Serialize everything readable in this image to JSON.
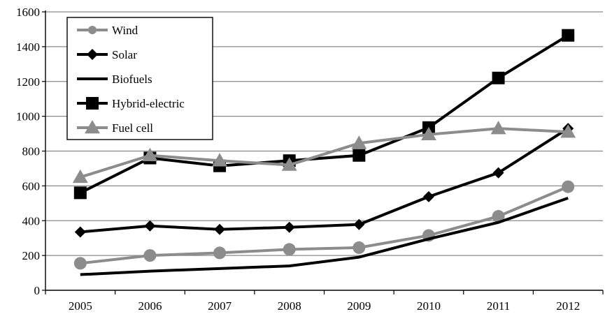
{
  "chart_data": {
    "type": "line",
    "title": "",
    "xlabel": "",
    "ylabel": "",
    "categories": [
      "2005",
      "2006",
      "2007",
      "2008",
      "2009",
      "2010",
      "2011",
      "2012"
    ],
    "ylim": [
      0,
      1600
    ],
    "yticks": [
      0,
      200,
      400,
      600,
      800,
      1000,
      1200,
      1400,
      1600
    ],
    "grid": "horizontal",
    "legend_position": "top-left",
    "series": [
      {
        "name": "Wind",
        "marker": "circle",
        "color": "#8c8c8c",
        "values": [
          155,
          200,
          215,
          235,
          245,
          315,
          425,
          595
        ]
      },
      {
        "name": "Solar",
        "marker": "diamond",
        "color": "#000000",
        "values": [
          335,
          370,
          350,
          362,
          378,
          538,
          675,
          930
        ]
      },
      {
        "name": "Biofuels",
        "marker": "none",
        "color": "#000000",
        "values": [
          90,
          110,
          125,
          140,
          190,
          295,
          390,
          530
        ]
      },
      {
        "name": "Hybrid-electric",
        "marker": "square",
        "color": "#000000",
        "values": [
          560,
          760,
          715,
          745,
          775,
          935,
          1220,
          1465
        ]
      },
      {
        "name": "Fuel cell",
        "marker": "triangle",
        "color": "#8c8c8c",
        "values": [
          650,
          775,
          745,
          720,
          845,
          895,
          930,
          910
        ]
      }
    ]
  }
}
